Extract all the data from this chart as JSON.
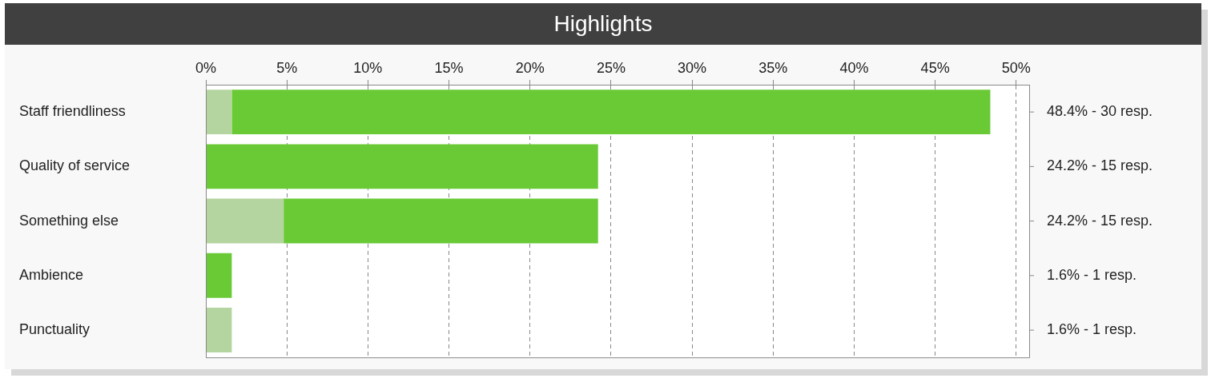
{
  "chart_data": {
    "type": "bar",
    "title": "Highlights",
    "orientation": "horizontal",
    "stacked": true,
    "grid": "x",
    "legend": false,
    "categories": [
      "Staff friendliness",
      "Quality of service",
      "Something else",
      "Ambience",
      "Punctuality"
    ],
    "series": [
      {
        "color": "#b5d5a0",
        "values": [
          1.6,
          0,
          4.8,
          0,
          1.6
        ]
      },
      {
        "color": "#6aca36",
        "values": [
          46.8,
          24.2,
          19.4,
          1.6,
          0
        ]
      }
    ],
    "xlim": [
      0,
      50.8
    ],
    "xticks": [
      {
        "value": 0,
        "label": "0%"
      },
      {
        "value": 5,
        "label": "5%"
      },
      {
        "value": 10,
        "label": "10%"
      },
      {
        "value": 15,
        "label": "15%"
      },
      {
        "value": 20,
        "label": "20%"
      },
      {
        "value": 25,
        "label": "25%"
      },
      {
        "value": 30,
        "label": "30%"
      },
      {
        "value": 35,
        "label": "35%"
      },
      {
        "value": 40,
        "label": "40%"
      },
      {
        "value": 45,
        "label": "45%"
      },
      {
        "value": 50,
        "label": "50%"
      }
    ],
    "annotations": [
      "48.4% - 30 resp.",
      "24.2% - 15 resp.",
      "24.2% - 15 resp.",
      "1.6% - 1 resp.",
      "1.6% - 1 resp."
    ]
  }
}
